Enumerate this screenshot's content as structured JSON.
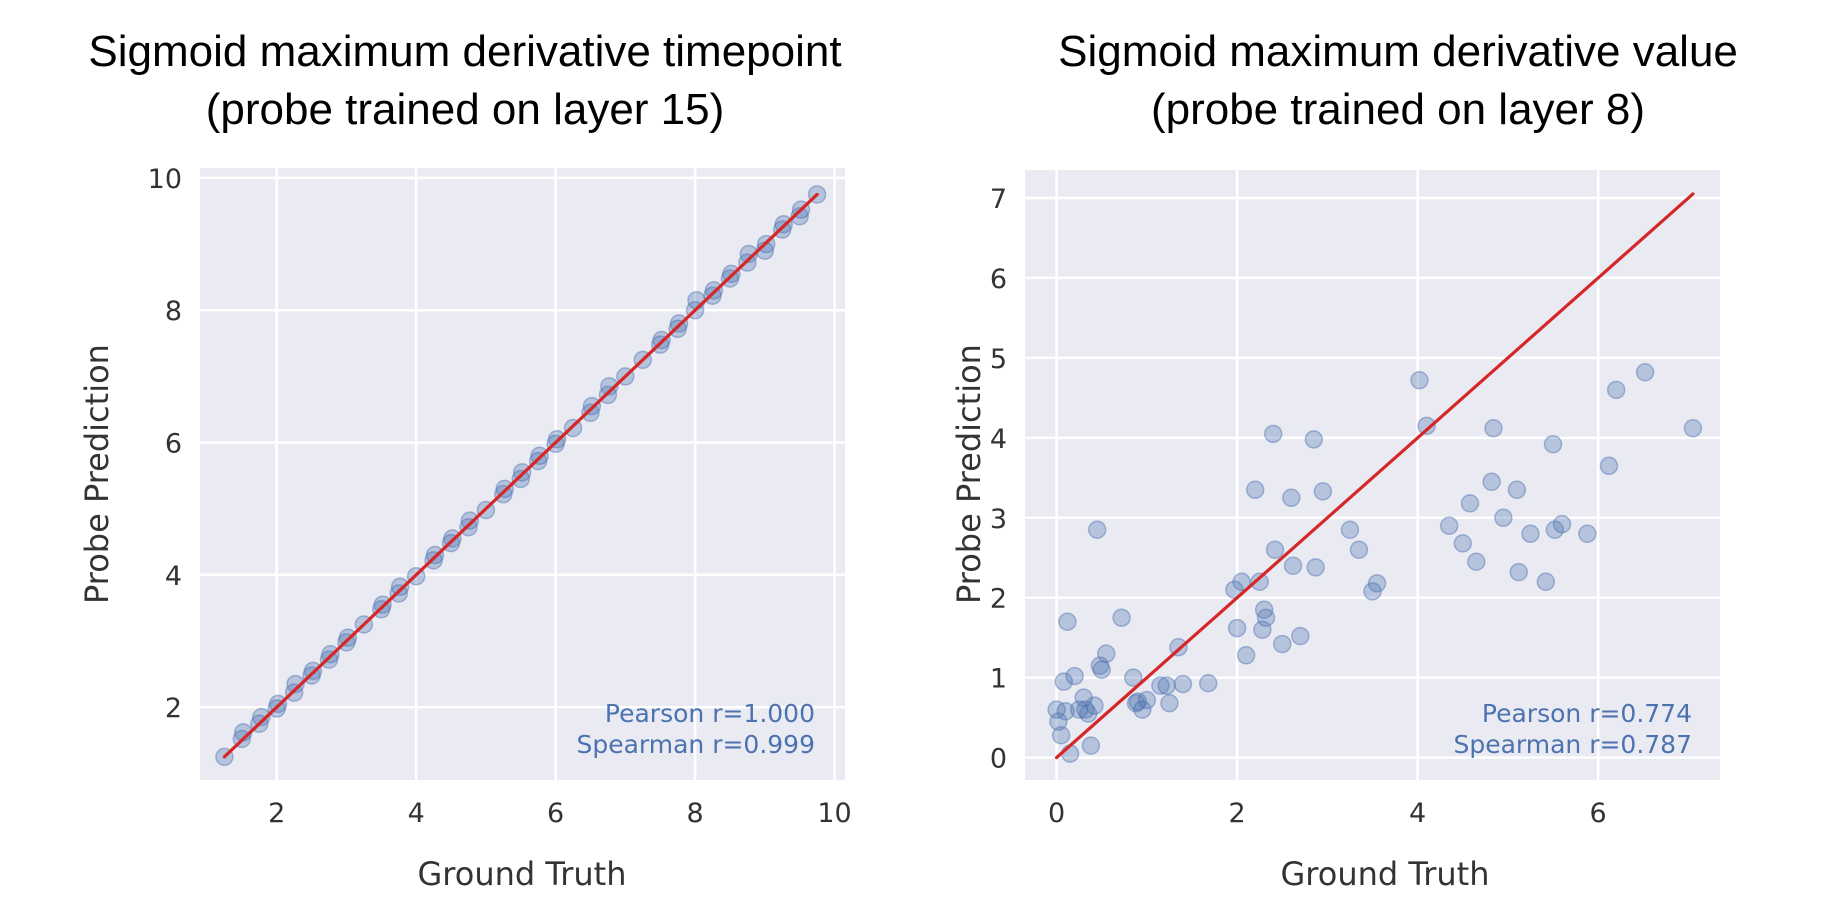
{
  "colors": {
    "background": "#eaeaf2",
    "grid": "#ffffff",
    "point": "#4c72b0",
    "fit_line": "#d62728",
    "annotation": "#4c72b0"
  },
  "chart_data": [
    {
      "type": "scatter",
      "title_lines": [
        "Sigmoid maximum derivative timepoint",
        "(probe trained on layer 15)"
      ],
      "xlabel": "Ground Truth",
      "ylabel": "Probe Prediction",
      "xlim": [
        0.9,
        10.15
      ],
      "ylim": [
        0.9,
        10.15
      ],
      "xticks": [
        2,
        4,
        6,
        8,
        10
      ],
      "yticks": [
        2,
        4,
        6,
        8,
        10
      ],
      "grid": true,
      "annotations": [
        "Pearson r=1.000",
        "Spearman r=0.999"
      ],
      "annotation_location": "bottom-right",
      "fit_line": {
        "from": [
          1.25,
          1.25
        ],
        "to": [
          9.75,
          9.75
        ]
      },
      "x": [
        1.25,
        1.5,
        1.52,
        1.75,
        1.78,
        2.0,
        2.02,
        2.25,
        2.27,
        2.5,
        2.52,
        2.75,
        2.77,
        3.0,
        3.02,
        3.25,
        3.5,
        3.52,
        3.75,
        3.77,
        4.0,
        4.25,
        4.27,
        4.5,
        4.52,
        4.75,
        4.77,
        5.0,
        5.25,
        5.27,
        5.5,
        5.52,
        5.75,
        5.77,
        6.0,
        6.02,
        6.25,
        6.5,
        6.52,
        6.75,
        6.77,
        7.0,
        7.25,
        7.5,
        7.52,
        7.75,
        7.77,
        8.0,
        8.02,
        8.25,
        8.27,
        8.5,
        8.52,
        8.75,
        8.77,
        9.0,
        9.02,
        9.25,
        9.27,
        9.5,
        9.52,
        9.75
      ],
      "y": [
        1.25,
        1.52,
        1.62,
        1.75,
        1.85,
        1.98,
        2.05,
        2.22,
        2.35,
        2.48,
        2.55,
        2.72,
        2.8,
        2.98,
        3.05,
        3.25,
        3.48,
        3.55,
        3.72,
        3.82,
        3.98,
        4.22,
        4.3,
        4.48,
        4.55,
        4.72,
        4.82,
        4.98,
        5.22,
        5.3,
        5.45,
        5.55,
        5.72,
        5.8,
        5.98,
        6.05,
        6.22,
        6.45,
        6.55,
        6.72,
        6.85,
        7.0,
        7.25,
        7.48,
        7.55,
        7.72,
        7.8,
        8.0,
        8.15,
        8.22,
        8.3,
        8.48,
        8.55,
        8.72,
        8.85,
        8.9,
        9.0,
        9.22,
        9.3,
        9.42,
        9.52,
        9.75
      ]
    },
    {
      "type": "scatter",
      "title_lines": [
        "Sigmoid maximum derivative value",
        "(probe trained on layer 8)"
      ],
      "xlabel": "Ground Truth",
      "ylabel": "Probe Prediction",
      "xlim": [
        -0.35,
        7.35
      ],
      "ylim": [
        -0.28,
        7.35
      ],
      "xticks": [
        0,
        2,
        4,
        6
      ],
      "yticks": [
        0,
        1,
        2,
        3,
        4,
        5,
        6,
        7
      ],
      "grid": true,
      "annotations": [
        "Pearson r=0.774",
        "Spearman r=0.787"
      ],
      "annotation_location": "bottom-right",
      "fit_line": {
        "from": [
          0.0,
          0.0
        ],
        "to": [
          7.05,
          7.05
        ]
      },
      "x": [
        0.0,
        0.02,
        0.05,
        0.08,
        0.1,
        0.12,
        0.15,
        0.2,
        0.25,
        0.3,
        0.32,
        0.35,
        0.38,
        0.42,
        0.45,
        0.48,
        0.5,
        0.55,
        0.72,
        0.85,
        0.88,
        0.9,
        0.95,
        1.0,
        1.15,
        1.22,
        1.25,
        1.35,
        1.4,
        1.68,
        1.97,
        2.0,
        2.05,
        2.1,
        2.2,
        2.25,
        2.28,
        2.3,
        2.32,
        2.4,
        2.42,
        2.5,
        2.6,
        2.62,
        2.7,
        2.85,
        2.87,
        2.95,
        3.25,
        3.35,
        3.5,
        3.55,
        4.02,
        4.1,
        4.35,
        4.5,
        4.58,
        4.65,
        4.82,
        4.84,
        4.95,
        5.1,
        5.12,
        5.25,
        5.42,
        5.5,
        5.52,
        5.6,
        5.88,
        6.12,
        6.2,
        6.52,
        7.05
      ],
      "y": [
        0.6,
        0.45,
        0.28,
        0.95,
        0.58,
        1.7,
        0.05,
        1.02,
        0.6,
        0.75,
        0.6,
        0.55,
        0.15,
        0.65,
        2.85,
        1.15,
        1.1,
        1.3,
        1.75,
        1.0,
        0.68,
        0.7,
        0.6,
        0.72,
        0.9,
        0.9,
        0.68,
        1.38,
        0.92,
        0.93,
        2.1,
        1.62,
        2.2,
        1.28,
        3.35,
        2.2,
        1.6,
        1.85,
        1.75,
        4.05,
        2.6,
        1.42,
        3.25,
        2.4,
        1.52,
        3.98,
        2.38,
        3.33,
        2.85,
        2.6,
        2.08,
        2.18,
        4.72,
        4.15,
        2.9,
        2.68,
        3.18,
        2.45,
        3.45,
        4.12,
        3.0,
        3.35,
        2.32,
        2.8,
        2.2,
        3.92,
        2.85,
        2.92,
        2.8,
        3.65,
        4.6,
        4.82,
        4.12
      ]
    }
  ]
}
